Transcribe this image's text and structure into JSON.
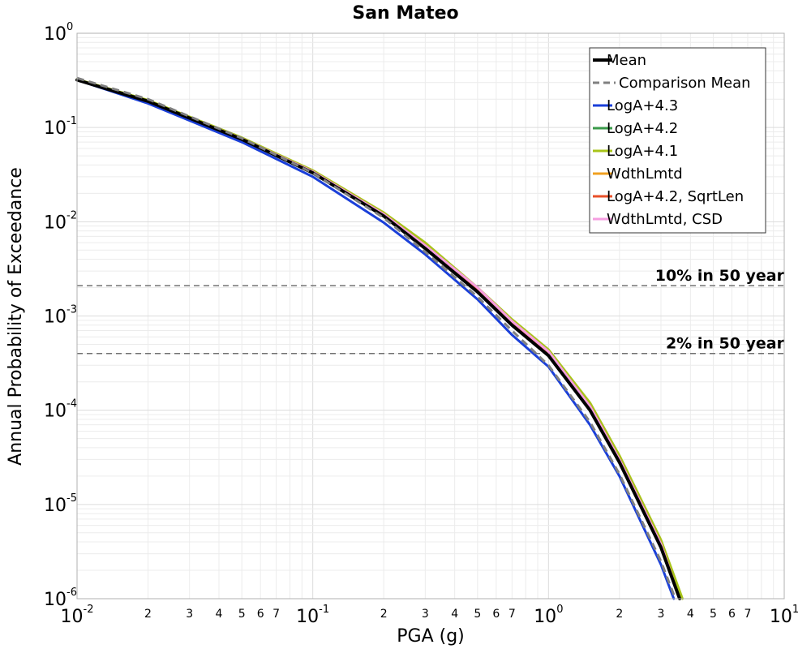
{
  "chart_data": {
    "type": "line",
    "title": "San Mateo",
    "xlabel": "PGA (g)",
    "ylabel": "Annual Probability of Exceedance",
    "xscale": "log",
    "yscale": "log",
    "xlim": [
      0.01,
      10
    ],
    "ylim": [
      1e-06,
      1
    ],
    "grid": true,
    "legend_position": "top-right",
    "x_major_ticks": [
      {
        "value": 0.01,
        "base": "10",
        "exp": "-2"
      },
      {
        "value": 0.1,
        "base": "10",
        "exp": "-1"
      },
      {
        "value": 1,
        "base": "10",
        "exp": "0"
      },
      {
        "value": 10,
        "base": "10",
        "exp": "1"
      }
    ],
    "x_minor_tick_labels": [
      "2",
      "3",
      "4",
      "5",
      "6",
      "7"
    ],
    "y_major_ticks": [
      {
        "value": 1,
        "base": "10",
        "exp": "0"
      },
      {
        "value": 0.1,
        "base": "10",
        "exp": "-1"
      },
      {
        "value": 0.01,
        "base": "10",
        "exp": "-2"
      },
      {
        "value": 0.001,
        "base": "10",
        "exp": "-3"
      },
      {
        "value": 0.0001,
        "base": "10",
        "exp": "-4"
      },
      {
        "value": 1e-05,
        "base": "10",
        "exp": "-5"
      },
      {
        "value": 1e-06,
        "base": "10",
        "exp": "-6"
      }
    ],
    "reference_lines": [
      {
        "label": "10% in 50 year",
        "y": 0.0021
      },
      {
        "label": "2% in 50 year",
        "y": 0.0004
      }
    ],
    "series": [
      {
        "name": "Mean",
        "color": "#000000",
        "dash": "solid",
        "width": 4,
        "x": [
          0.01,
          0.02,
          0.05,
          0.1,
          0.2,
          0.3,
          0.5,
          0.7,
          1.0,
          1.5,
          2.0,
          3.0,
          3.6
        ],
        "y": [
          0.32,
          0.19,
          0.075,
          0.033,
          0.0115,
          0.0052,
          0.0018,
          0.0008,
          0.00038,
          0.0001,
          2.8e-05,
          3.5e-06,
          1e-06
        ]
      },
      {
        "name": "Comparison Mean",
        "color": "#808080",
        "dash": "dashed",
        "width": 3,
        "x": [
          0.01,
          0.02,
          0.05,
          0.1,
          0.2,
          0.3,
          0.5,
          0.7,
          1.0,
          1.5,
          2.0,
          3.0,
          3.45
        ],
        "y": [
          0.335,
          0.2,
          0.077,
          0.033,
          0.011,
          0.0048,
          0.0016,
          0.0007,
          0.0003,
          7.5e-05,
          2.1e-05,
          2.5e-06,
          1e-06
        ]
      },
      {
        "name": "LogA+4.3",
        "color": "#1a3fd9",
        "dash": "solid",
        "width": 3,
        "x": [
          0.01,
          0.02,
          0.05,
          0.1,
          0.2,
          0.3,
          0.5,
          0.7,
          1.0,
          1.5,
          2.0,
          3.0,
          3.4
        ],
        "y": [
          0.32,
          0.18,
          0.07,
          0.03,
          0.0098,
          0.0045,
          0.0015,
          0.00063,
          0.00029,
          7e-05,
          2e-05,
          2.3e-06,
          1e-06
        ]
      },
      {
        "name": "LogA+4.2",
        "color": "#3a9a4a",
        "dash": "solid",
        "width": 3,
        "x": [
          0.01,
          0.02,
          0.05,
          0.1,
          0.2,
          0.3,
          0.5,
          0.7,
          1.0,
          1.5,
          2.0,
          3.0,
          3.6
        ],
        "y": [
          0.32,
          0.19,
          0.075,
          0.033,
          0.0115,
          0.0052,
          0.0018,
          0.0008,
          0.00038,
          0.0001,
          2.8e-05,
          3.5e-06,
          1e-06
        ]
      },
      {
        "name": "LogA+4.1",
        "color": "#a8c41a",
        "dash": "solid",
        "width": 3,
        "x": [
          0.01,
          0.02,
          0.05,
          0.1,
          0.2,
          0.3,
          0.5,
          0.7,
          1.0,
          1.5,
          2.0,
          3.0,
          3.7
        ],
        "y": [
          0.325,
          0.195,
          0.078,
          0.035,
          0.0125,
          0.006,
          0.002,
          0.00092,
          0.00044,
          0.00012,
          3.3e-05,
          4.2e-06,
          1e-06
        ]
      },
      {
        "name": "WdthLmtd",
        "color": "#f0a020",
        "dash": "solid",
        "width": 3,
        "x": [
          0.01,
          0.02,
          0.05,
          0.1,
          0.2,
          0.3,
          0.5,
          0.7,
          1.0,
          1.5,
          2.0,
          3.0,
          3.6
        ],
        "y": [
          0.32,
          0.19,
          0.076,
          0.034,
          0.012,
          0.0055,
          0.0019,
          0.00085,
          0.0004,
          0.00011,
          3e-05,
          3.8e-06,
          1e-06
        ]
      },
      {
        "name": "LogA+4.2, SqrtLen",
        "color": "#e8502a",
        "dash": "solid",
        "width": 3,
        "x": [
          0.01,
          0.02,
          0.05,
          0.1,
          0.2,
          0.3,
          0.5,
          0.7,
          1.0,
          1.5,
          2.0,
          3.0,
          3.6
        ],
        "y": [
          0.32,
          0.19,
          0.076,
          0.034,
          0.012,
          0.0056,
          0.00195,
          0.00087,
          0.00041,
          0.00011,
          3e-05,
          3.8e-06,
          1e-06
        ]
      },
      {
        "name": "WdthLmtd, CSD",
        "color": "#f59ee0",
        "dash": "solid",
        "width": 3,
        "x": [
          0.01,
          0.02,
          0.05,
          0.1,
          0.2,
          0.3,
          0.5,
          0.7,
          1.0,
          1.5,
          2.0,
          3.0,
          3.6
        ],
        "y": [
          0.32,
          0.19,
          0.076,
          0.034,
          0.012,
          0.0056,
          0.002,
          0.00088,
          0.00042,
          0.00011,
          3e-05,
          3.8e-06,
          1e-06
        ]
      }
    ]
  }
}
